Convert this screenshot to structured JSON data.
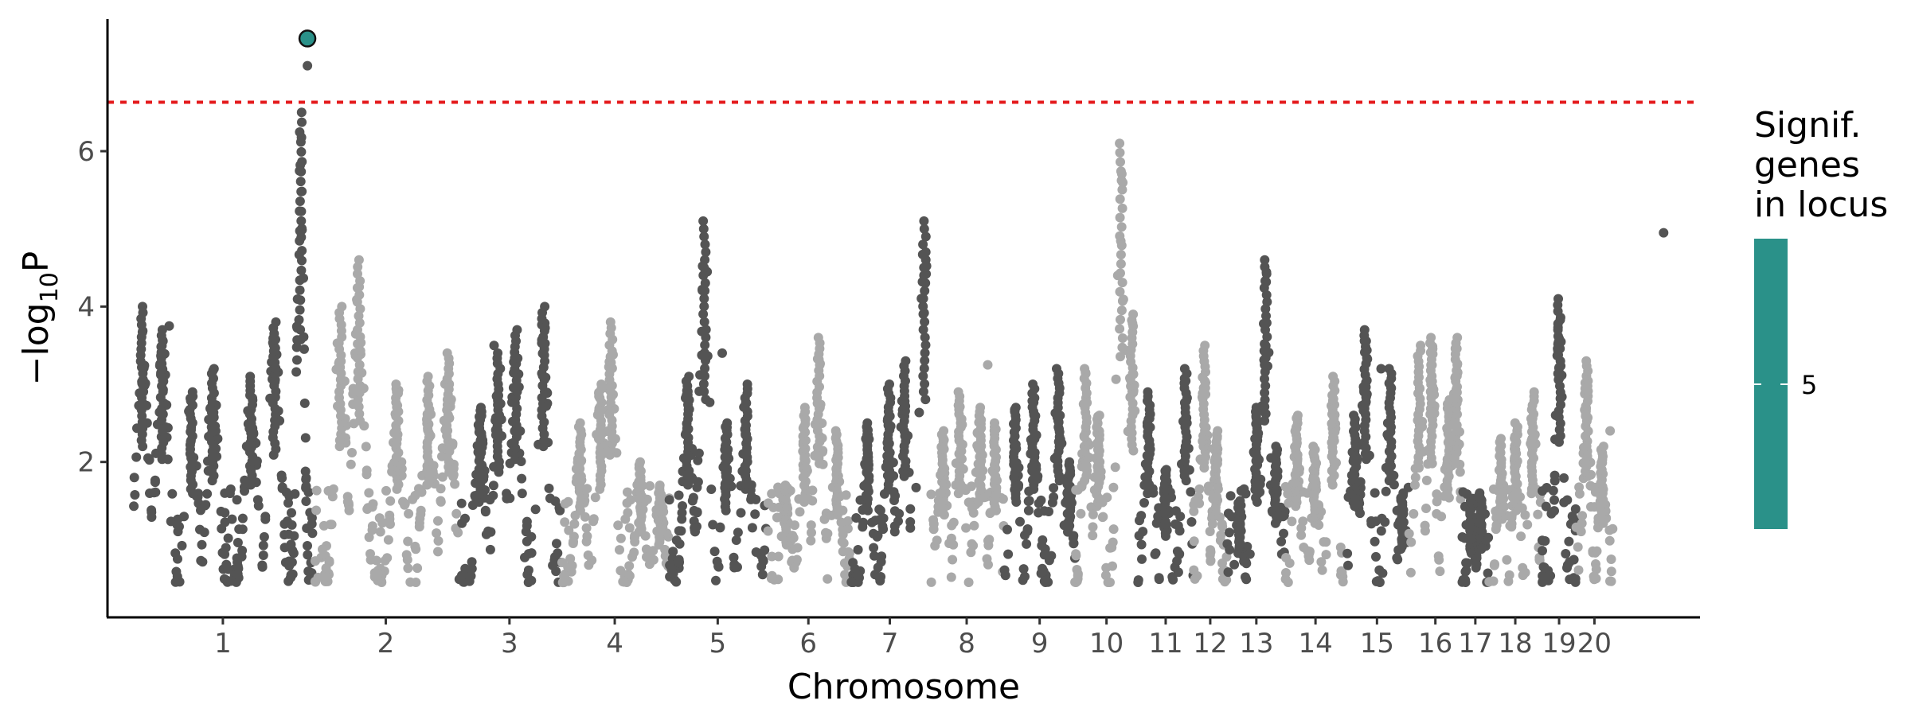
{
  "chart_data": {
    "type": "scatter",
    "subtype": "manhattan",
    "xlabel": "Chromosome",
    "ylabel_prefix": "−log",
    "ylabel_sub": "10",
    "ylabel_suffix": "P",
    "ylim": [
      0,
      7.7
    ],
    "yticks": [
      2,
      4,
      6
    ],
    "threshold": 6.63,
    "threshold_color": "#e41a1c",
    "grid": false,
    "colors": {
      "dark": "#545454",
      "light": "#a9a9a9",
      "highlight": "#2a9189"
    },
    "chromosomes": [
      {
        "label": "1",
        "start": 0.0,
        "end": 0.101,
        "peaks": [
          [
            0.006,
            4.0
          ],
          [
            0.019,
            3.7
          ],
          [
            0.038,
            2.9
          ],
          [
            0.052,
            3.2
          ],
          [
            0.077,
            3.1
          ],
          [
            0.092,
            3.8
          ]
        ]
      },
      {
        "label": "",
        "start": 0.101,
        "end": 0.117,
        "peaks": [
          [
            0.109,
            6.5
          ]
        ]
      },
      {
        "label": "2",
        "start": 0.117,
        "end": 0.212,
        "peaks": [
          [
            0.135,
            4.0
          ],
          [
            0.147,
            4.6
          ],
          [
            0.172,
            3.0
          ],
          [
            0.192,
            3.1
          ],
          [
            0.205,
            3.4
          ]
        ]
      },
      {
        "label": "3",
        "start": 0.212,
        "end": 0.278,
        "peaks": [
          [
            0.226,
            2.7
          ],
          [
            0.238,
            3.4
          ],
          [
            0.249,
            3.7
          ],
          [
            0.267,
            4.0
          ]
        ]
      },
      {
        "label": "4",
        "start": 0.278,
        "end": 0.349,
        "peaks": [
          [
            0.291,
            2.5
          ],
          [
            0.304,
            3.0
          ],
          [
            0.311,
            3.8
          ],
          [
            0.33,
            2.0
          ],
          [
            0.343,
            1.7
          ]
        ]
      },
      {
        "label": "5",
        "start": 0.349,
        "end": 0.412,
        "peaks": [
          [
            0.361,
            3.1
          ],
          [
            0.372,
            5.1
          ],
          [
            0.386,
            2.5
          ],
          [
            0.399,
            3.0
          ]
        ]
      },
      {
        "label": "6",
        "start": 0.412,
        "end": 0.467,
        "peaks": [
          [
            0.425,
            1.7
          ],
          [
            0.437,
            2.7
          ],
          [
            0.446,
            3.6
          ],
          [
            0.458,
            2.4
          ]
        ]
      },
      {
        "label": "7",
        "start": 0.467,
        "end": 0.518,
        "peaks": [
          [
            0.478,
            2.5
          ],
          [
            0.492,
            3.0
          ],
          [
            0.502,
            3.3
          ],
          [
            0.515,
            5.1
          ]
        ]
      },
      {
        "label": "8",
        "start": 0.518,
        "end": 0.567,
        "peaks": [
          [
            0.527,
            2.4
          ],
          [
            0.538,
            2.9
          ],
          [
            0.551,
            2.7
          ],
          [
            0.561,
            2.5
          ]
        ]
      },
      {
        "label": "9",
        "start": 0.567,
        "end": 0.613,
        "peaks": [
          [
            0.574,
            2.7
          ],
          [
            0.586,
            3.0
          ],
          [
            0.602,
            3.2
          ],
          [
            0.609,
            2.0
          ]
        ]
      },
      {
        "label": "10",
        "start": 0.613,
        "end": 0.654,
        "peaks": [
          [
            0.62,
            3.2
          ],
          [
            0.628,
            2.6
          ],
          [
            0.643,
            6.1
          ],
          [
            0.65,
            3.9
          ]
        ]
      },
      {
        "label": "11",
        "start": 0.654,
        "end": 0.69,
        "peaks": [
          [
            0.661,
            2.9
          ],
          [
            0.672,
            1.9
          ],
          [
            0.685,
            3.2
          ]
        ]
      },
      {
        "label": "12",
        "start": 0.69,
        "end": 0.712,
        "peaks": [
          [
            0.697,
            3.5
          ],
          [
            0.705,
            2.4
          ]
        ]
      },
      {
        "label": "13",
        "start": 0.712,
        "end": 0.75,
        "peaks": [
          [
            0.72,
            1.5
          ],
          [
            0.731,
            2.7
          ],
          [
            0.737,
            4.6
          ],
          [
            0.744,
            2.2
          ]
        ]
      },
      {
        "label": "14",
        "start": 0.75,
        "end": 0.789,
        "peaks": [
          [
            0.757,
            2.6
          ],
          [
            0.769,
            2.2
          ],
          [
            0.781,
            3.1
          ]
        ]
      },
      {
        "label": "15",
        "start": 0.789,
        "end": 0.83,
        "peaks": [
          [
            0.795,
            2.6
          ],
          [
            0.802,
            3.7
          ],
          [
            0.818,
            3.2
          ],
          [
            0.826,
            1.6
          ]
        ]
      },
      {
        "label": "16",
        "start": 0.83,
        "end": 0.865,
        "peaks": [
          [
            0.837,
            3.5
          ],
          [
            0.845,
            3.6
          ],
          [
            0.856,
            2.8
          ],
          [
            0.861,
            3.6
          ]
        ]
      },
      {
        "label": "17",
        "start": 0.865,
        "end": 0.882,
        "peaks": [
          [
            0.871,
            1.5
          ],
          [
            0.877,
            1.6
          ]
        ]
      },
      {
        "label": "18",
        "start": 0.882,
        "end": 0.917,
        "peaks": [
          [
            0.89,
            2.3
          ],
          [
            0.9,
            2.5
          ],
          [
            0.911,
            2.9
          ]
        ]
      },
      {
        "label": "19",
        "start": 0.917,
        "end": 0.939,
        "peaks": [
          [
            0.928,
            4.1
          ]
        ]
      },
      {
        "label": "20",
        "start": 0.939,
        "end": 0.963,
        "peaks": [
          [
            0.946,
            3.3
          ],
          [
            0.956,
            2.2
          ]
        ]
      }
    ],
    "outliers": [
      {
        "x": 0.0236,
        "y": 3.75
      },
      {
        "x": 0.1135,
        "y": 7.1
      },
      {
        "x": 0.235,
        "y": 3.5
      },
      {
        "x": 0.3834,
        "y": 3.4
      },
      {
        "x": 0.5562,
        "y": 3.25
      },
      {
        "x": 0.8122,
        "y": 3.2
      },
      {
        "x": 0.9612,
        "y": 2.4
      },
      {
        "x": 0.996,
        "y": 4.95
      }
    ],
    "highlight_point": {
      "x": 0.1135,
      "y": 7.45
    },
    "legend": {
      "title_lines": [
        "Signif.",
        "genes",
        "in locus"
      ],
      "tick_label": "5",
      "placement": "right"
    }
  }
}
